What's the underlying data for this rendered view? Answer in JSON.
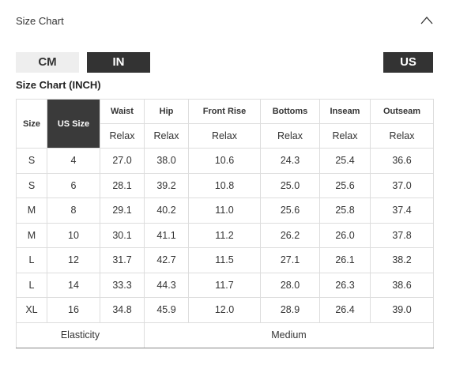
{
  "header": {
    "title": "Size Chart"
  },
  "unit_tabs": [
    "CM",
    "IN"
  ],
  "region_tab": "US",
  "table_title": "Size Chart (INCH)",
  "table": {
    "columns": [
      "Size",
      "US Size",
      "Waist",
      "Hip",
      "Front Rise",
      "Bottoms",
      "Inseam",
      "Outseam"
    ],
    "fit_row": [
      "Relax",
      "Relax",
      "Relax",
      "Relax",
      "Relax",
      "Relax"
    ],
    "rows": [
      [
        "S",
        "4",
        "27.0",
        "38.0",
        "10.6",
        "24.3",
        "25.4",
        "36.6"
      ],
      [
        "S",
        "6",
        "28.1",
        "39.2",
        "10.8",
        "25.0",
        "25.6",
        "37.0"
      ],
      [
        "M",
        "8",
        "29.1",
        "40.2",
        "11.0",
        "25.6",
        "25.8",
        "37.4"
      ],
      [
        "M",
        "10",
        "30.1",
        "41.1",
        "11.2",
        "26.2",
        "26.0",
        "37.8"
      ],
      [
        "L",
        "12",
        "31.7",
        "42.7",
        "11.5",
        "27.1",
        "26.1",
        "38.2"
      ],
      [
        "L",
        "14",
        "33.3",
        "44.3",
        "11.7",
        "28.0",
        "26.3",
        "38.6"
      ],
      [
        "XL",
        "16",
        "34.8",
        "45.9",
        "12.0",
        "28.9",
        "26.4",
        "39.0"
      ]
    ],
    "footer": [
      "Elasticity",
      "Medium"
    ]
  }
}
